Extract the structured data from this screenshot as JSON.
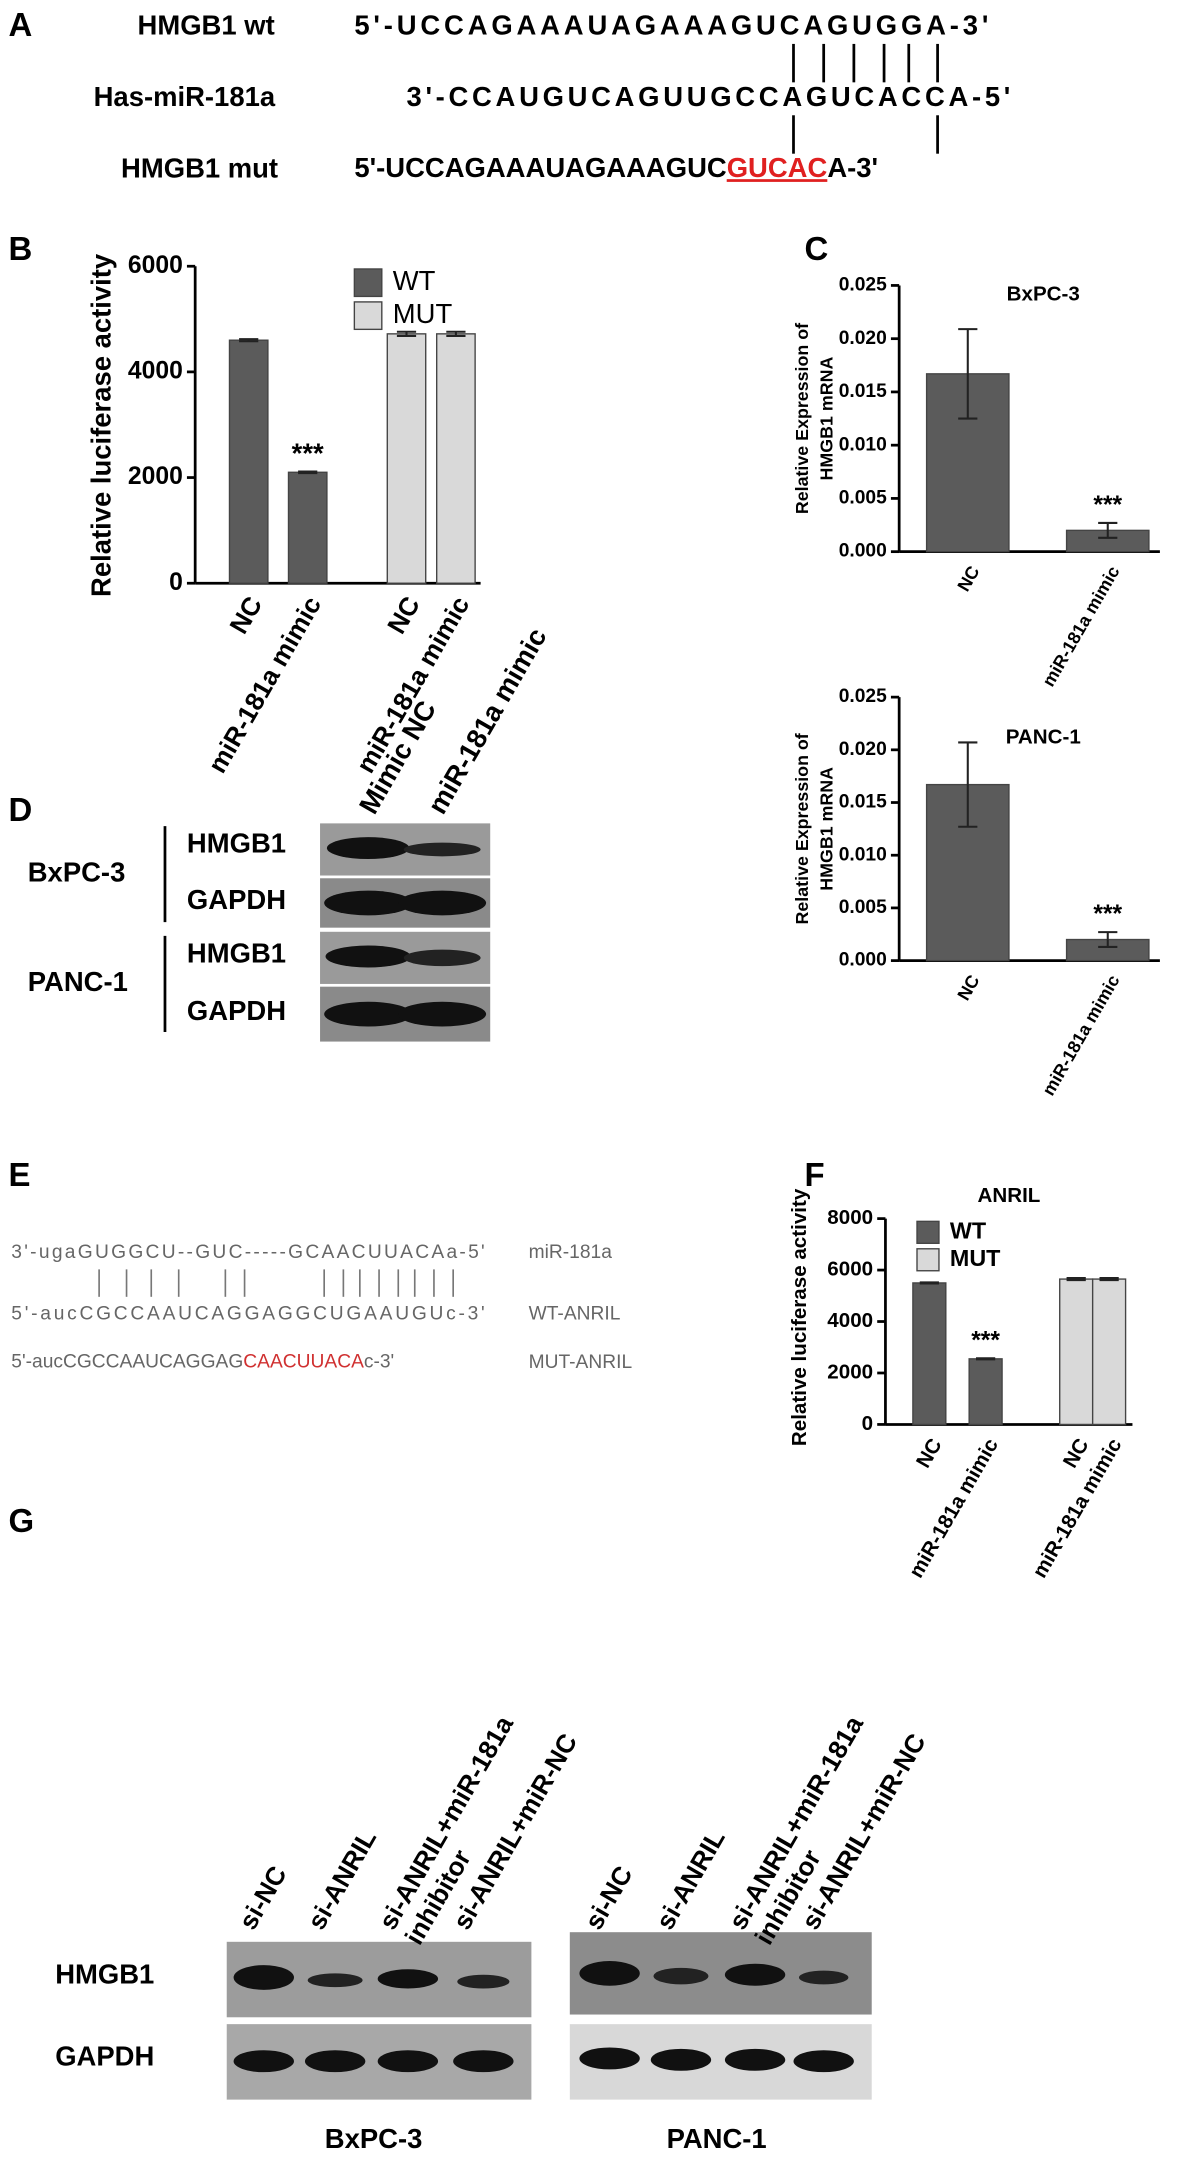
{
  "panel_labels": [
    "A",
    "B",
    "C",
    "D",
    "E",
    "F",
    "G"
  ],
  "seq_a": {
    "rows": [
      {
        "label": "HMGB1 wt",
        "seq": [
          "5'-UCCAGAAAUAGAAAGUCAGUGGA-3'"
        ]
      },
      {
        "label": "Has-miR-181a",
        "seq": [
          "3'-CCAUGUCAGUUGCCAGUCACCA-5'"
        ]
      },
      {
        "label": "HMGB1 mut",
        "seq": [
          "5'-UCCAGAAAUAGAAAGUC",
          "GUCAC",
          "A-3'"
        ]
      }
    ]
  },
  "chart_data": [
    {
      "type": "bar",
      "ylabel": [
        "Relative luciferase activity"
      ],
      "categories": [
        "NC",
        "miR-181a mimic",
        "NC",
        "miR-181a mimic"
      ],
      "series": [
        {
          "name": "WT",
          "color": "#5b5b5b",
          "values": [
            4600,
            2100,
            null,
            null
          ],
          "errors": [
            20,
            15,
            null,
            null
          ],
          "markers": [
            null,
            "***",
            null,
            null
          ]
        },
        {
          "name": "MUT",
          "color": "#d9d9d9",
          "values": [
            null,
            null,
            4720,
            4720
          ],
          "errors": [
            null,
            null,
            40,
            40
          ],
          "markers": [
            null,
            null,
            null,
            null
          ]
        }
      ],
      "ylim": [
        0,
        6000
      ],
      "yticks": [
        0,
        2000,
        4000,
        6000
      ],
      "legend": "upper right"
    },
    {
      "type": "bar",
      "title": "BxPC-3",
      "ylabel": [
        "Relative Expression of",
        "HMGB1 mRNA"
      ],
      "categories": [
        "NC",
        "miR-181a mimic"
      ],
      "series": [
        {
          "color": "#5b5b5b",
          "values": [
            0.0167,
            0.002
          ],
          "errors": [
            0.0042,
            0.0007
          ],
          "markers": [
            null,
            "***"
          ]
        }
      ],
      "ylim": [
        0,
        0.025
      ],
      "yticks": [
        {
          "value": 0,
          "label": "0.000"
        },
        0.005,
        {
          "value": 0.01,
          "label": "0.010"
        },
        0.015,
        {
          "value": 0.02,
          "label": "0.020"
        },
        0.025
      ]
    },
    {
      "type": "bar",
      "title": "PANC-1",
      "ylabel": [
        "Relative Expression of",
        "HMGB1 mRNA"
      ],
      "categories": [
        "NC",
        "miR-181a mimic"
      ],
      "series": [
        {
          "color": "#5b5b5b",
          "values": [
            0.0167,
            0.002
          ],
          "errors": [
            0.004,
            0.0007
          ],
          "markers": [
            null,
            "***"
          ]
        }
      ],
      "ylim": [
        0,
        0.025
      ],
      "yticks": [
        {
          "value": 0,
          "label": "0.000"
        },
        0.005,
        {
          "value": 0.01,
          "label": "0.010"
        },
        0.015,
        {
          "value": 0.02,
          "label": "0.020"
        },
        0.025
      ]
    },
    {
      "type": "bar",
      "title": "ANRIL",
      "ylabel": [
        "Relative luciferase activity"
      ],
      "categories": [
        "NC",
        "miR-181a mimic",
        "NC",
        "miR-181a mimic"
      ],
      "series": [
        {
          "name": "WT",
          "color": "#5b5b5b",
          "values": [
            5500,
            2550,
            null,
            null
          ],
          "errors": [
            20,
            20,
            null,
            null
          ],
          "markers": [
            null,
            "***",
            null,
            null
          ]
        },
        {
          "name": "MUT",
          "color": "#d9d9d9",
          "values": [
            null,
            null,
            5650,
            5650
          ],
          "errors": [
            null,
            null,
            40,
            40
          ],
          "markers": [
            null,
            null,
            null,
            null
          ]
        }
      ],
      "ylim": [
        0,
        8000
      ],
      "yticks": [
        0,
        2000,
        4000,
        6000,
        8000
      ],
      "legend": "upper left"
    }
  ],
  "blot_d": {
    "lanes": [
      "Mimic NC",
      "miR-181a mimic"
    ],
    "cells": [
      "BxPC-3",
      "PANC-1"
    ],
    "proteins": [
      "HMGB1",
      "GAPDH",
      "HMGB1",
      "GAPDH"
    ]
  },
  "seq_e": {
    "rows": [
      {
        "seq": [
          "3'-ugaGUGGCU--GUC-----GCAACUUACAa-5'"
        ],
        "label": "miR-181a"
      },
      {
        "seq": [
          "5'-aucCGCCAAUCAGGAGGCUGAAUGUc-3'"
        ],
        "label": "WT-ANRIL"
      },
      {
        "seq": [
          "5'-aucCGCCAAUCAGGAG",
          "CAACUUACA",
          "c-3'"
        ],
        "label": "MUT-ANRIL"
      }
    ]
  },
  "blot_g": {
    "lanes": [
      [
        "si-NC"
      ],
      [
        "si-ANRIL"
      ],
      [
        "si-ANRIL+miR-181a",
        "inhibitor"
      ],
      [
        "si-ANRIL+miR-NC"
      ]
    ],
    "proteins": [
      "HMGB1",
      "GAPDH"
    ],
    "cells": [
      "BxPC-3",
      "PANC-1"
    ]
  }
}
